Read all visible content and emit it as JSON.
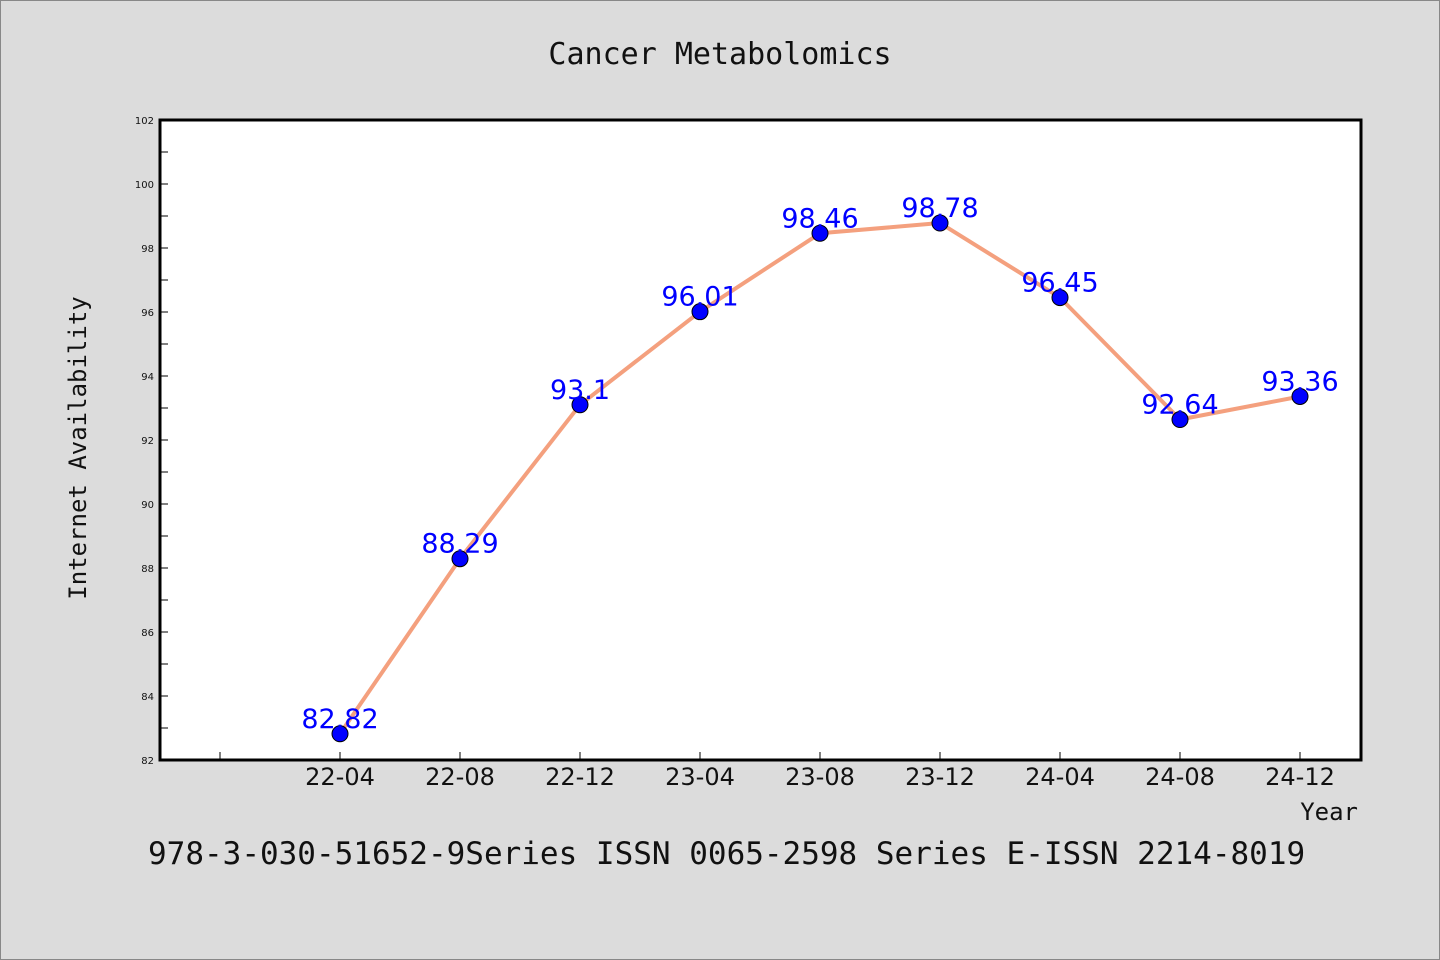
{
  "colors": {
    "background": "#dcdcdc",
    "plot_bg": "#ffffff",
    "line": "#f4a07e",
    "marker": "#0000ff",
    "label": "#0000ff",
    "text": "#111111"
  },
  "footer_text": "978-3-030-51652-9Series ISSN 0065-2598 Series E-ISSN 2214-8019",
  "chart_data": {
    "type": "line",
    "title": "Cancer Metabolomics",
    "xlabel": "Year",
    "ylabel": "Internet Availability",
    "categories": [
      "22-04",
      "22-08",
      "22-12",
      "23-04",
      "23-08",
      "23-12",
      "24-04",
      "24-08",
      "24-12"
    ],
    "series": [
      {
        "values": [
          82.82,
          88.29,
          93.1,
          96.01,
          98.46,
          98.78,
          96.45,
          92.64,
          93.36
        ]
      }
    ],
    "data_labels": [
      "82.82",
      "88.29",
      "93.1",
      "96.01",
      "98.46",
      "98.78",
      "96.45",
      "92.64",
      "93.36"
    ],
    "ylim": [
      82,
      102
    ],
    "yticks": [
      82,
      84,
      86,
      88,
      90,
      92,
      94,
      96,
      98,
      100,
      102
    ],
    "grid": false,
    "legend": "none"
  }
}
